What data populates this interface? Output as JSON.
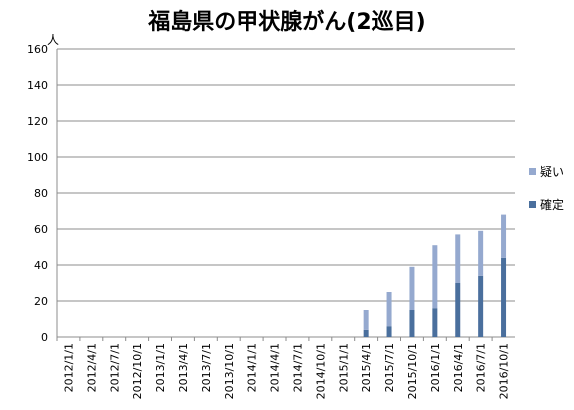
{
  "chart_data": {
    "type": "bar",
    "stacked": true,
    "title": "福島県の甲状腺がん(2巡目)",
    "ylabel": "人",
    "xlabel": "",
    "ylim": [
      0,
      160
    ],
    "yticks": [
      0,
      20,
      40,
      60,
      80,
      100,
      120,
      140,
      160
    ],
    "grid": true,
    "legend_position": "right",
    "categories": [
      "2012/1/1",
      "2012/4/1",
      "2012/7/1",
      "2012/10/1",
      "2013/1/1",
      "2013/4/1",
      "2013/7/1",
      "2013/10/1",
      "2014/1/1",
      "2014/4/1",
      "2014/7/1",
      "2014/10/1",
      "2015/1/1",
      "2015/4/1",
      "2015/7/1",
      "2015/10/1",
      "2016/1/1",
      "2016/4/1",
      "2016/7/1",
      "2016/10/1"
    ],
    "bars": [
      {
        "x": "2015/4/1",
        "confirmed": 4,
        "suspected": 11
      },
      {
        "x": "2015/7/1",
        "confirmed": 6,
        "suspected": 19
      },
      {
        "x": "2015/10/1",
        "confirmed": 15,
        "suspected": 24
      },
      {
        "x": "2016/1/1",
        "confirmed": 16,
        "suspected": 35
      },
      {
        "x": "2016/4/1",
        "confirmed": 30,
        "suspected": 27
      },
      {
        "x": "2016/7/1",
        "confirmed": 34,
        "suspected": 25
      },
      {
        "x": "2016/10/1",
        "confirmed": 44,
        "suspected": 24
      }
    ],
    "series": [
      {
        "key": "suspected",
        "name": "疑い",
        "color": "#95a9cf"
      },
      {
        "key": "confirmed",
        "name": "確定",
        "color": "#4a6f9d"
      }
    ]
  }
}
